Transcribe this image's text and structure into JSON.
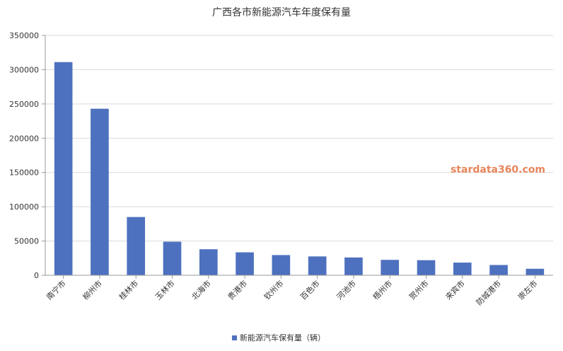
{
  "chart_data": {
    "type": "bar",
    "title": "广西各市新能源汽车年度保有量",
    "categories": [
      "南宁市",
      "柳州市",
      "桂林市",
      "玉林市",
      "北海市",
      "贵港市",
      "钦州市",
      "百色市",
      "河池市",
      "梧州市",
      "贺州市",
      "来宾市",
      "防城港市",
      "崇左市"
    ],
    "series": [
      {
        "name": "新能源汽车保有量（辆）",
        "values": [
          311000,
          243000,
          85000,
          49000,
          38000,
          33500,
          29500,
          27500,
          26000,
          22500,
          22000,
          18500,
          15000,
          9500
        ]
      }
    ],
    "ylim": [
      0,
      350000
    ],
    "yticks": [
      "0",
      "50000",
      "100000",
      "150000",
      "200000",
      "250000",
      "300000",
      "350000"
    ],
    "grid": true,
    "legend_position": "bottom-center",
    "watermark": "stardata360.com",
    "colors": {
      "bar": "#4e71bf",
      "grid": "#d9d9d9",
      "axis": "#999999",
      "text": "#333333",
      "watermark": "#e8855a"
    }
  }
}
